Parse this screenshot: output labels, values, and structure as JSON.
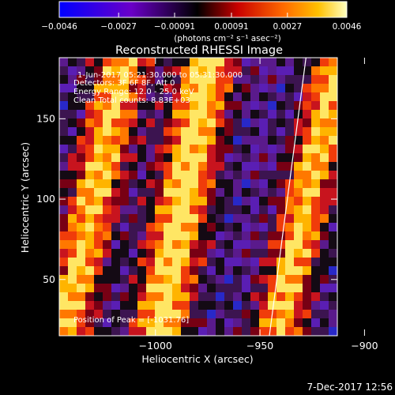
{
  "chart_data": {
    "type": "heatmap",
    "title": "Reconstructed RHESSI Image",
    "xlabel": "Heliocentric X (arcsec)",
    "ylabel": "Heliocentric Y (arcsec)",
    "xlim": [
      -1046,
      -913
    ],
    "ylim": [
      15,
      188
    ],
    "xticks": [
      -1000,
      -950,
      -900
    ],
    "xtick_labels": [
      "−1000",
      "−950",
      "−900"
    ],
    "yticks": [
      50,
      100,
      150
    ],
    "ytick_labels": [
      "50",
      "100",
      "150"
    ],
    "colorbar": {
      "min": -0.0046,
      "max": 0.0046,
      "ticks": [
        -0.0046,
        -0.0027,
        -0.00091,
        0.00091,
        0.0027,
        0.0046
      ],
      "tick_labels": [
        "−0.0046",
        "−0.0027",
        "−0.00091",
        "0.00091",
        "0.0027",
        "0.0046"
      ],
      "units_label": "(photons cm⁻² s⁻¹ asec⁻²)"
    },
    "annotations": [
      "1-Jun-2017 05:21:30.000 to 05:31:30.000",
      "Detectors: 3F 6F 8F, Att 0",
      "Energy Range: 12.0 - 25.0 keV",
      "Clean     Total counts: 8.83E+03",
      "Position of Peak = [-1031.76]"
    ],
    "limb_line": {
      "x": [
        -945.5,
        -928
      ],
      "y": [
        15,
        188
      ]
    },
    "footer": "7-Dec-2017 12:56",
    "grid": false
  }
}
